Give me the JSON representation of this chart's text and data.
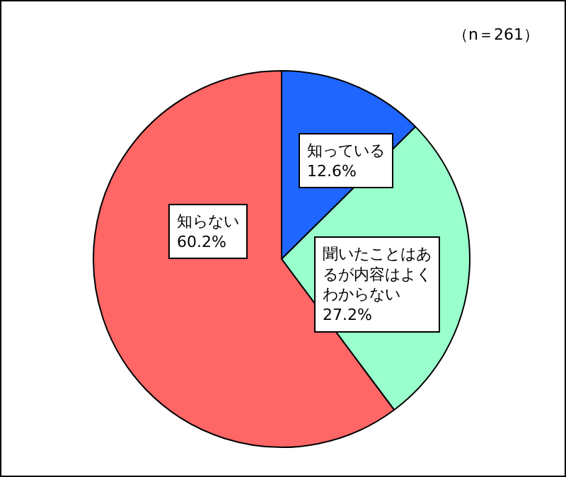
{
  "chart_data": {
    "type": "pie",
    "categories": [
      "知っている",
      "聞いたことはあるが内容はよくわからない",
      "知らない"
    ],
    "values": [
      12.6,
      27.2,
      60.2
    ],
    "colors": [
      "#1f66ff",
      "#99ffcc",
      "#ff6666"
    ],
    "value_labels": [
      "12.6%",
      "27.2%",
      "60.2%"
    ],
    "legend": false,
    "annotations": [
      "（n＝261）"
    ]
  }
}
